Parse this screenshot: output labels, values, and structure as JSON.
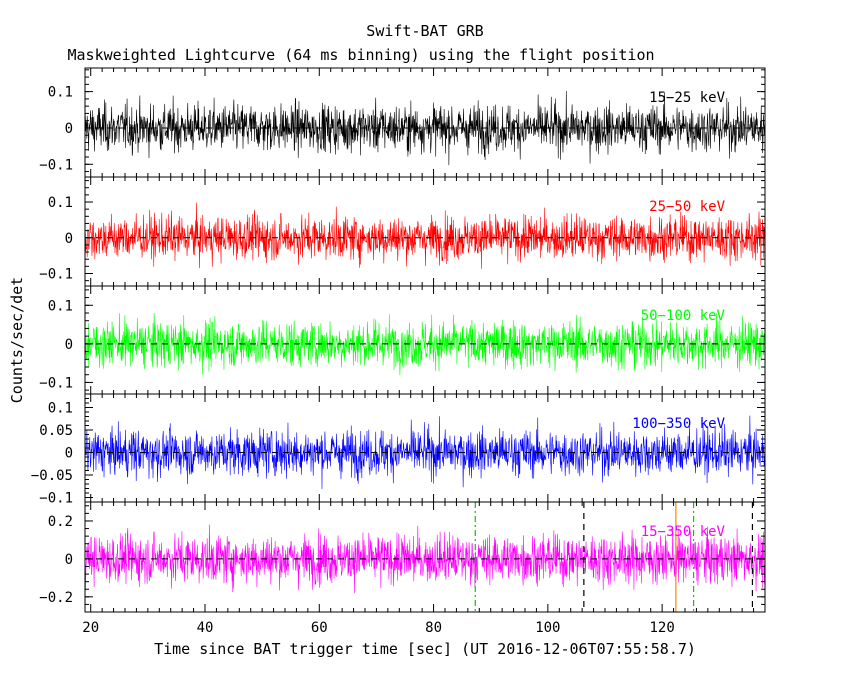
{
  "figure": {
    "title": "Swift-BAT GRB",
    "subtitle": "Maskweighted Lightcurve (64 ms binning) using the flight position",
    "xlabel": "Time since BAT trigger time [sec] (UT 2016-12-06T07:55:58.7)",
    "ylabel": "Counts/sec/det"
  },
  "chart_data": {
    "type": "line",
    "x_range": [
      19,
      138
    ],
    "x_ticks": [
      20,
      40,
      60,
      80,
      100,
      120
    ],
    "x_tick_labels": [
      "20",
      "40",
      "60",
      "80",
      "100",
      "120"
    ],
    "bin_width_s": 0.064,
    "grid": false,
    "zero_line": "dashed",
    "panels": [
      {
        "name": "15-25 keV",
        "label": "15−25 keV",
        "color": "#000000",
        "ylim": [
          -0.135,
          0.165
        ],
        "y_ticks": [
          -0.1,
          0,
          0.1
        ],
        "y_tick_labels": [
          "−0.1",
          "0",
          "0.1"
        ],
        "noise_sigma": 0.038,
        "mean": 0.0
      },
      {
        "name": "25-50 keV",
        "label": "25−50 keV",
        "color": "#ff0000",
        "ylim": [
          -0.135,
          0.17
        ],
        "y_ticks": [
          -0.1,
          0,
          0.1
        ],
        "y_tick_labels": [
          "−0.1",
          "0",
          "0.1"
        ],
        "noise_sigma": 0.036,
        "mean": 0.0
      },
      {
        "name": "50-100 keV",
        "label": "50−100 keV",
        "color": "#00ff00",
        "ylim": [
          -0.13,
          0.15
        ],
        "y_ticks": [
          -0.1,
          0,
          0.1
        ],
        "y_tick_labels": [
          "−0.1",
          "0",
          "0.1"
        ],
        "noise_sigma": 0.035,
        "mean": 0.0
      },
      {
        "name": "100-350 keV",
        "label": "100−350 keV",
        "color": "#0000ff",
        "ylim": [
          -0.11,
          0.13
        ],
        "y_ticks": [
          -0.1,
          -0.05,
          0,
          0.05,
          0.1
        ],
        "y_tick_labels": [
          "−0.1",
          "−0.05",
          "0",
          "0.05",
          "0.1"
        ],
        "noise_sigma": 0.03,
        "mean": 0.0
      },
      {
        "name": "15-350 keV",
        "label": "15−350 keV",
        "color": "#ff00ff",
        "ylim": [
          -0.28,
          0.3
        ],
        "y_ticks": [
          -0.2,
          0,
          0.2
        ],
        "y_tick_labels": [
          "−0.2",
          "0",
          "0.2"
        ],
        "noise_sigma": 0.075,
        "mean": 0.0
      }
    ],
    "markers": [
      {
        "x": 87.3,
        "style": "dash-dot",
        "color": "#00cc00"
      },
      {
        "x": 106.3,
        "style": "dashed",
        "color": "#000000"
      },
      {
        "x": 122.4,
        "style": "solid",
        "color": "#ff8800"
      },
      {
        "x": 125.5,
        "style": "dash-dot",
        "color": "#00cc00"
      },
      {
        "x": 135.8,
        "style": "dashed",
        "color": "#000000"
      }
    ]
  }
}
